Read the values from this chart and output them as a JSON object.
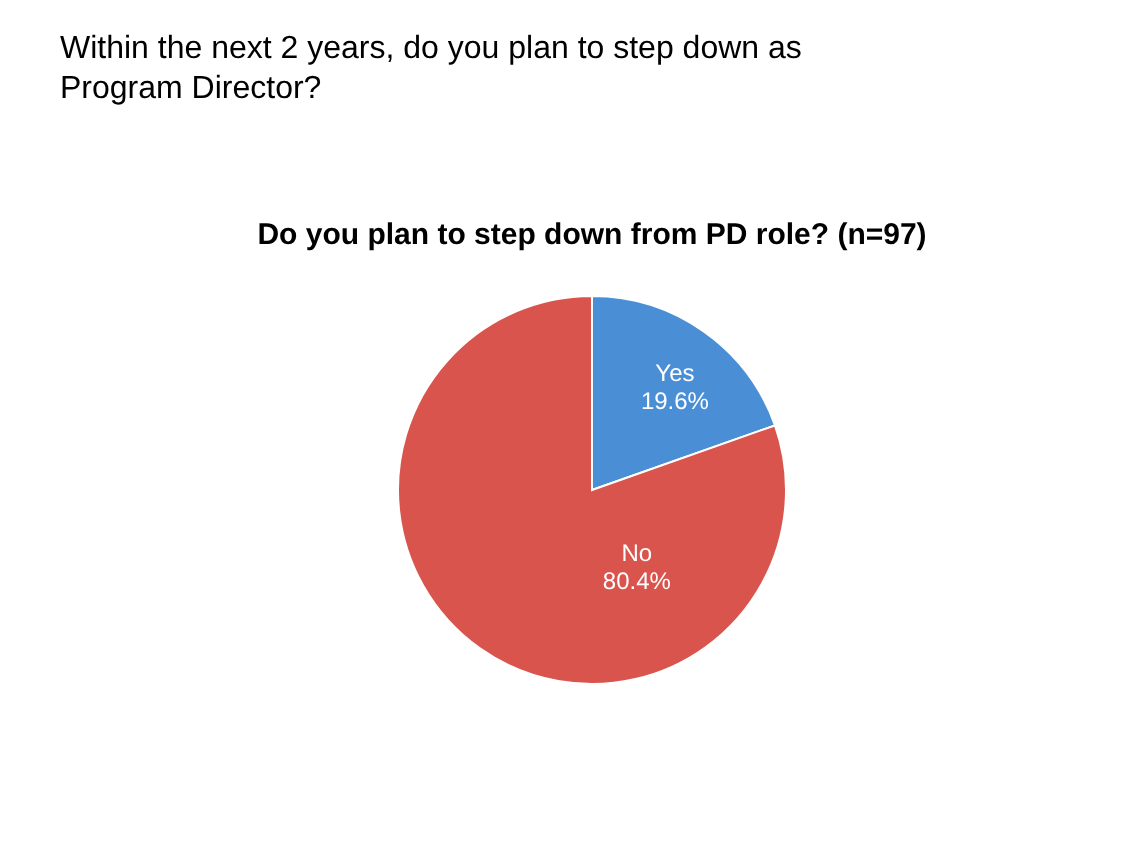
{
  "chart_data": {
    "type": "pie",
    "title": "Within the next 2 years, do you plan to step down as Program Director?",
    "subtitle": "Do you plan to step down from PD role? (n=97)",
    "categories": [
      "Yes",
      "No"
    ],
    "values": [
      19.6,
      80.4
    ],
    "value_labels": [
      "19.6%",
      "80.4%"
    ],
    "colors": [
      "#4a8fd6",
      "#d9544c"
    ]
  }
}
